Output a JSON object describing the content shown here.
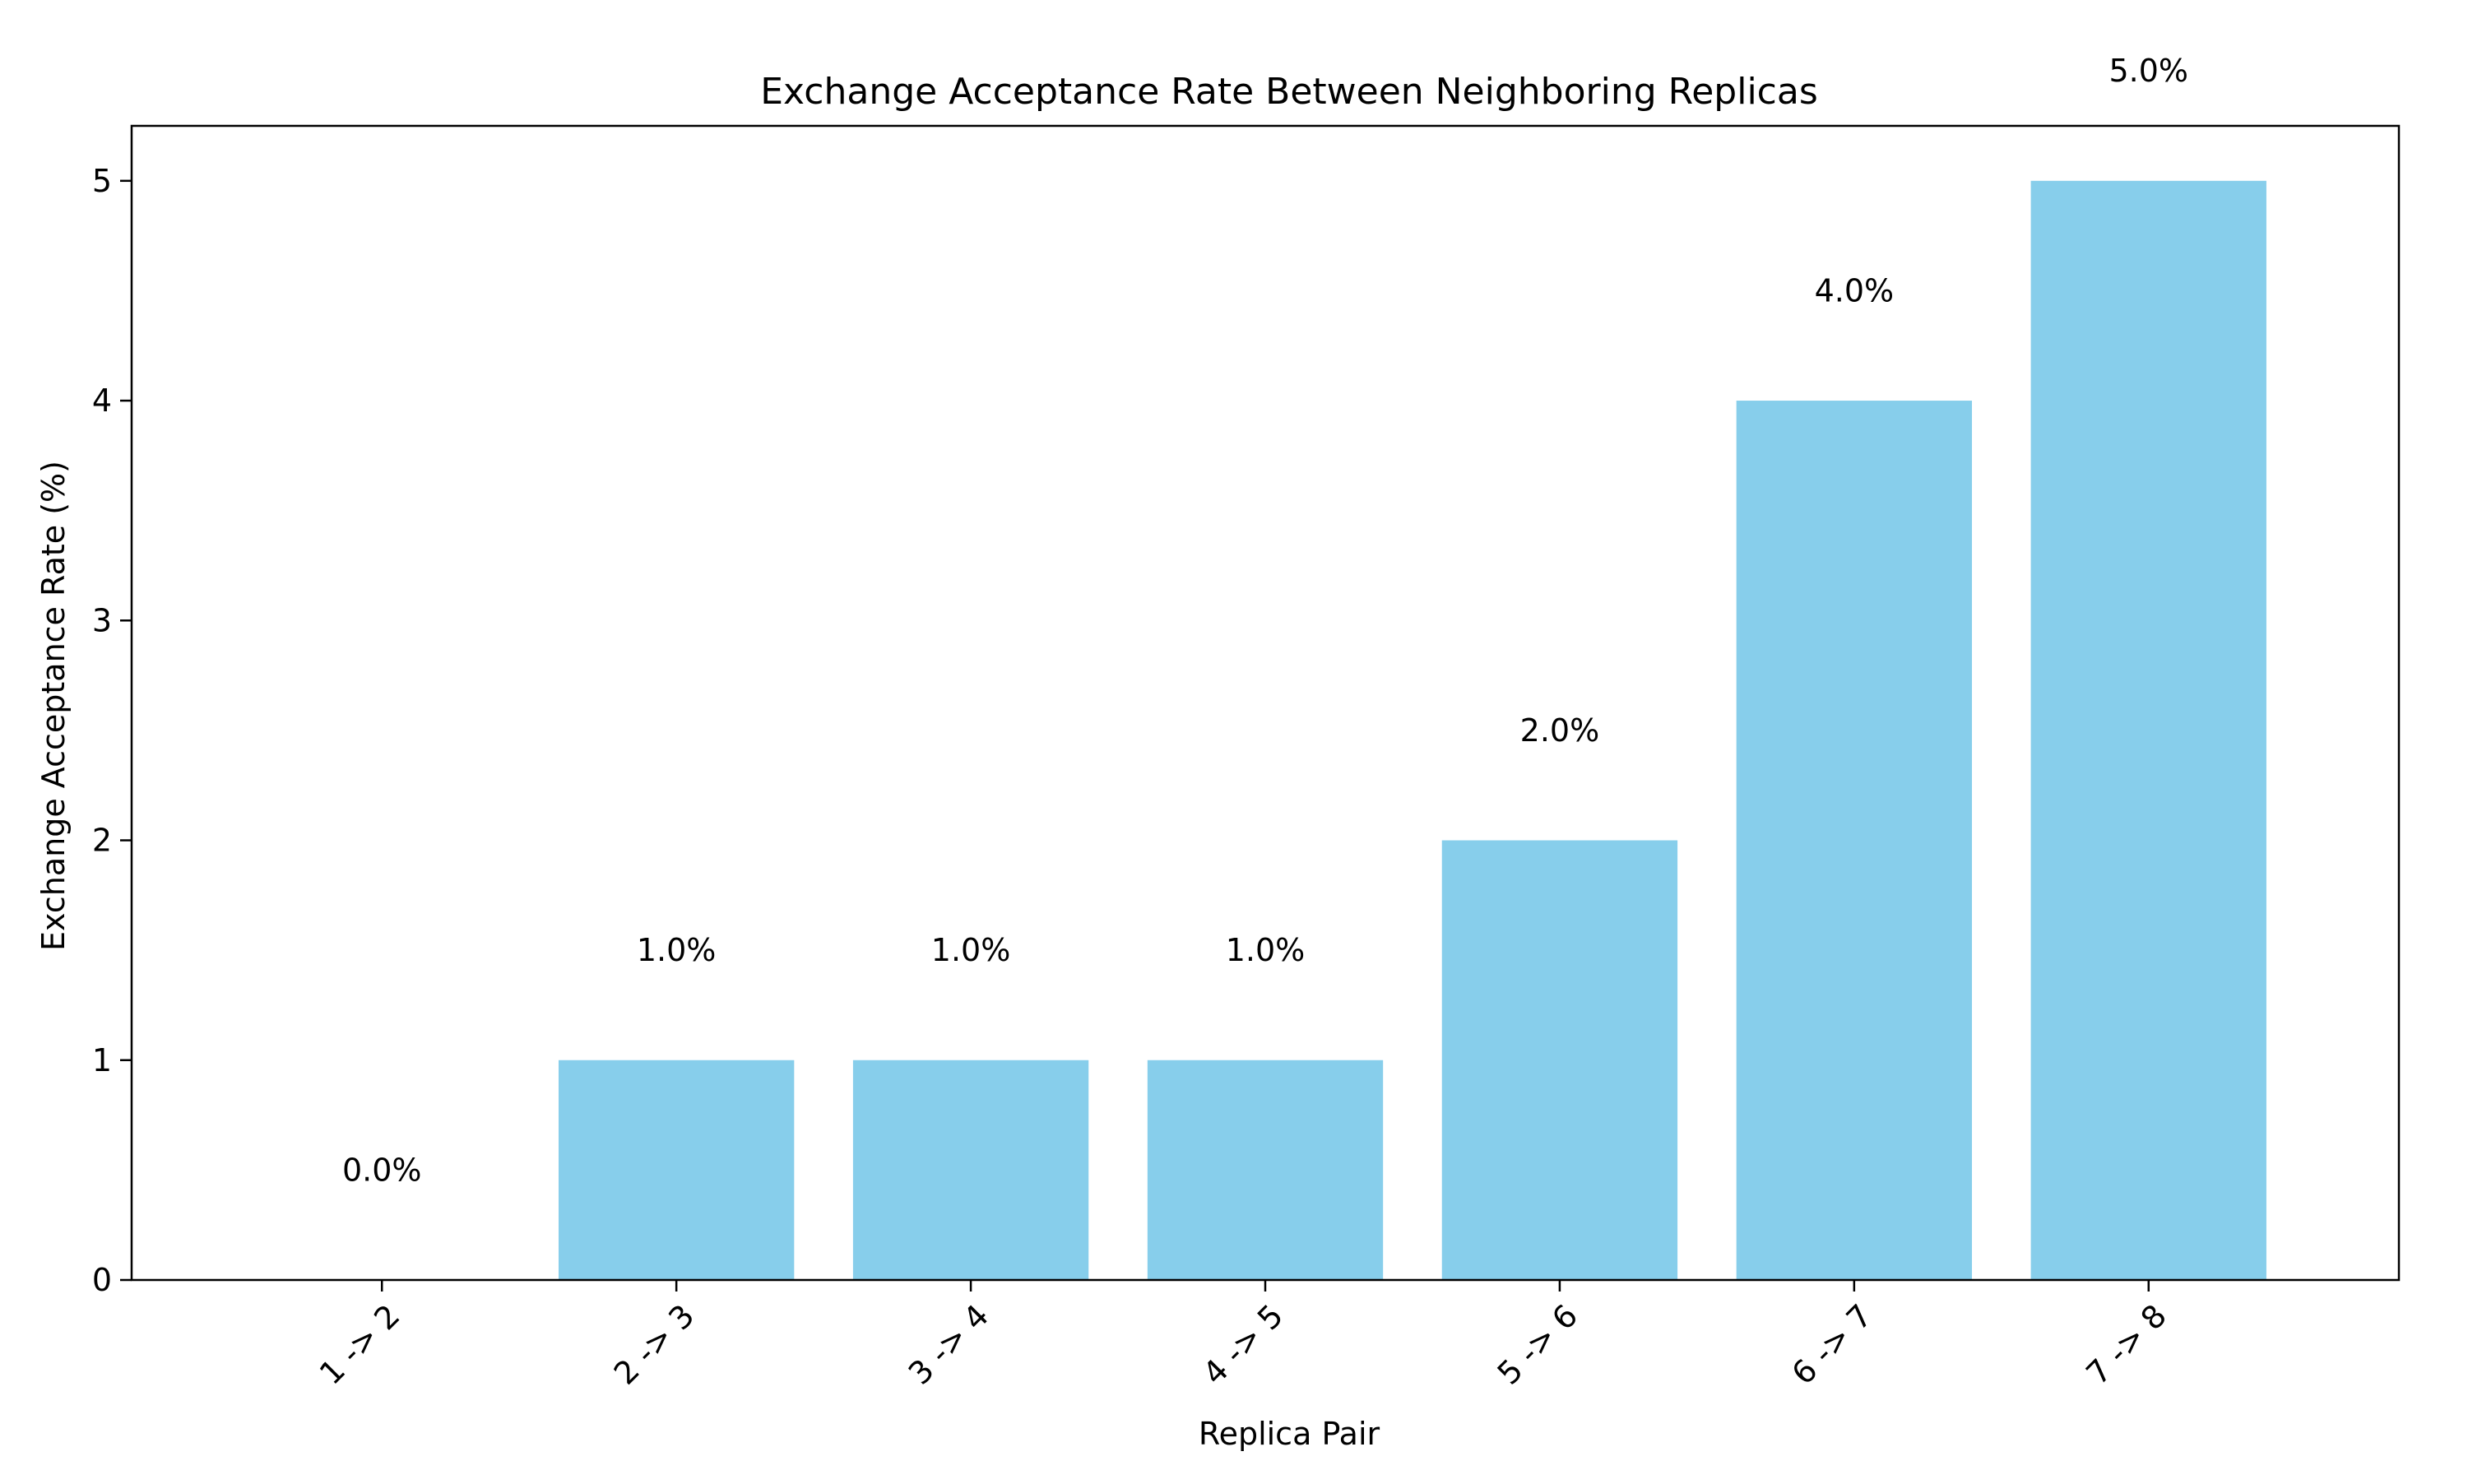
{
  "chart_data": {
    "type": "bar",
    "title": "Exchange Acceptance Rate Between Neighboring Replicas",
    "xlabel": "Replica Pair",
    "ylabel": "Exchange Acceptance Rate (%)",
    "categories": [
      "1 -> 2",
      "2 -> 3",
      "3 -> 4",
      "4 -> 5",
      "5 -> 6",
      "6 -> 7",
      "7 -> 8"
    ],
    "values": [
      0.0,
      1.0,
      1.0,
      1.0,
      2.0,
      4.0,
      5.0
    ],
    "data_labels": [
      "0.0%",
      "1.0%",
      "1.0%",
      "1.0%",
      "2.0%",
      "4.0%",
      "5.0%"
    ],
    "ylim": [
      0,
      5.25
    ],
    "yticks": [
      0,
      1,
      2,
      3,
      4,
      5
    ],
    "ytick_labels": [
      "0",
      "1",
      "2",
      "3",
      "4",
      "5"
    ],
    "grid": false,
    "legend": false,
    "bar_color": "#87CEEB",
    "label_offset": 0.5
  }
}
